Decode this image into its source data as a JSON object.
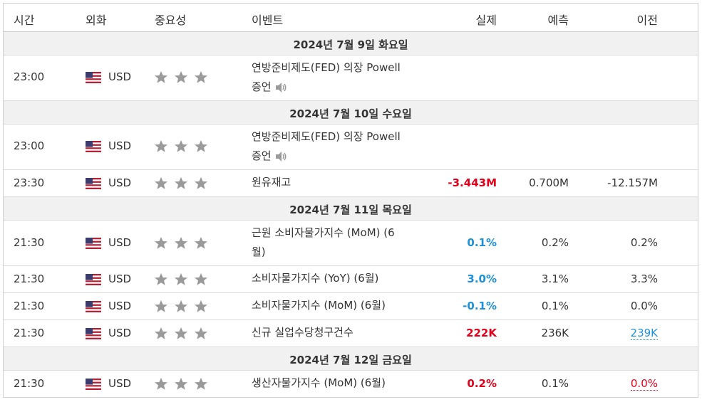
{
  "header": {
    "time": "시간",
    "currency": "외화",
    "importance": "중요성",
    "event": "이벤트",
    "actual": "실제",
    "forecast": "예측",
    "previous": "이전"
  },
  "dates": [
    "2024년 7월 9일 화요일",
    "2024년 7월 10일 수요일",
    "2024년 7월 11일 목요일",
    "2024년 7월 12일 금요일"
  ],
  "events": [
    {
      "time": "23:00",
      "currency": "USD",
      "stars": 3,
      "name_line1": "연방준비제도(FED) 의장 Powell",
      "name_line2": "증언",
      "speaker": true,
      "actual": "",
      "forecast": "",
      "previous": ""
    },
    {
      "time": "23:00",
      "currency": "USD",
      "stars": 3,
      "name_line1": "연방준비제도(FED) 의장 Powell",
      "name_line2": "증언",
      "speaker": true,
      "actual": "",
      "forecast": "",
      "previous": ""
    },
    {
      "time": "23:30",
      "currency": "USD",
      "stars": 3,
      "name_line1": "원유재고",
      "name_line2": "",
      "speaker": false,
      "actual": "-3.443M",
      "forecast": "0.700M",
      "previous": "-12.157M"
    },
    {
      "time": "21:30",
      "currency": "USD",
      "stars": 3,
      "name_line1": "근원 소비자물가지수 (MoM) (6",
      "name_line2": "월)",
      "speaker": false,
      "actual": "0.1%",
      "forecast": "0.2%",
      "previous": "0.2%"
    },
    {
      "time": "21:30",
      "currency": "USD",
      "stars": 3,
      "name_line1": "소비자물가지수 (YoY) (6월)",
      "name_line2": "",
      "speaker": false,
      "actual": "3.0%",
      "forecast": "3.1%",
      "previous": "3.3%"
    },
    {
      "time": "21:30",
      "currency": "USD",
      "stars": 3,
      "name_line1": "소비자물가지수 (MoM) (6월)",
      "name_line2": "",
      "speaker": false,
      "actual": "-0.1%",
      "forecast": "0.1%",
      "previous": "0.0%"
    },
    {
      "time": "21:30",
      "currency": "USD",
      "stars": 3,
      "name_line1": "신규 실업수당청구건수",
      "name_line2": "",
      "speaker": false,
      "actual": "222K",
      "forecast": "236K",
      "previous": "239K"
    },
    {
      "time": "21:30",
      "currency": "USD",
      "stars": 3,
      "name_line1": "생산자물가지수 (MoM) (6월)",
      "name_line2": "",
      "speaker": false,
      "actual": "0.2%",
      "forecast": "0.1%",
      "previous": "0.0%"
    }
  ],
  "colors": {
    "actual_red": "#e3001b",
    "actual_blue": "#1e90d8",
    "star_gray": "#9a9a9a",
    "date_row_bg": "#f1f1f1"
  },
  "icons": {
    "flag": "us-flag-icon",
    "star": "star-icon",
    "speaker": "speaker-icon"
  }
}
